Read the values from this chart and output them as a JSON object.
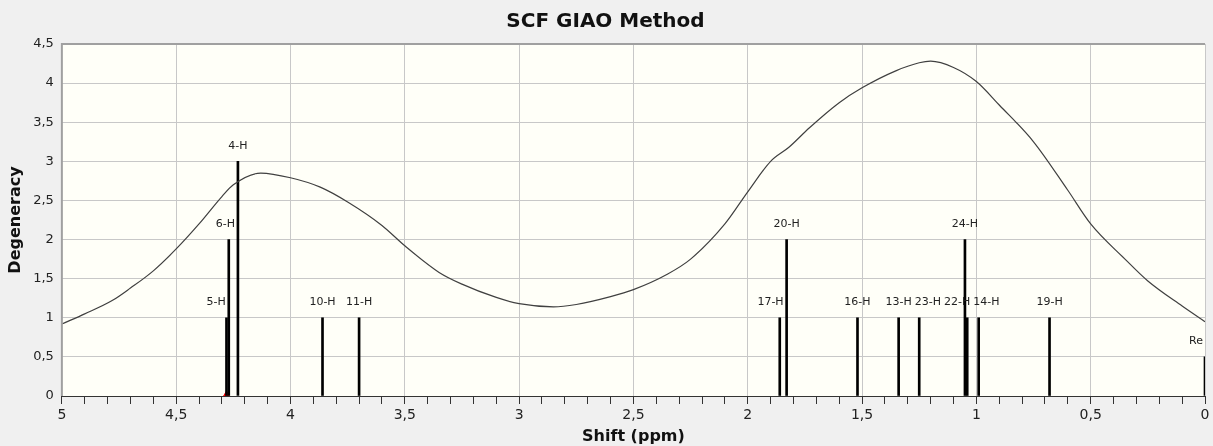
{
  "chart_data": {
    "type": "bar",
    "title": "SCF GIAO Method",
    "xlabel": "Shift (ppm)",
    "ylabel": "Degeneracy",
    "xlim": [
      5,
      0
    ],
    "xticks": [
      {
        "value": 5,
        "label": "5"
      },
      {
        "value": 4.9,
        "label": null
      },
      {
        "value": 4.8,
        "label": null
      },
      {
        "value": 4.7,
        "label": null
      },
      {
        "value": 4.6,
        "label": null
      },
      {
        "value": 4.5,
        "label": "4,5"
      },
      {
        "value": 4.4,
        "label": null
      },
      {
        "value": 4.3,
        "label": null
      },
      {
        "value": 4.2,
        "label": null
      },
      {
        "value": 4.1,
        "label": null
      },
      {
        "value": 4,
        "label": "4"
      },
      {
        "value": 3.9,
        "label": null
      },
      {
        "value": 3.8,
        "label": null
      },
      {
        "value": 3.7,
        "label": null
      },
      {
        "value": 3.6,
        "label": null
      },
      {
        "value": 3.5,
        "label": "3,5"
      },
      {
        "value": 3.4,
        "label": null
      },
      {
        "value": 3.3,
        "label": null
      },
      {
        "value": 3.2,
        "label": null
      },
      {
        "value": 3.1,
        "label": null
      },
      {
        "value": 3,
        "label": "3"
      },
      {
        "value": 2.9,
        "label": null
      },
      {
        "value": 2.8,
        "label": null
      },
      {
        "value": 2.7,
        "label": null
      },
      {
        "value": 2.6,
        "label": null
      },
      {
        "value": 2.5,
        "label": "2,5"
      },
      {
        "value": 2.4,
        "label": null
      },
      {
        "value": 2.3,
        "label": null
      },
      {
        "value": 2.2,
        "label": null
      },
      {
        "value": 2.1,
        "label": null
      },
      {
        "value": 2,
        "label": "2"
      },
      {
        "value": 1.9,
        "label": null
      },
      {
        "value": 1.8,
        "label": null
      },
      {
        "value": 1.7,
        "label": null
      },
      {
        "value": 1.6,
        "label": null
      },
      {
        "value": 1.5,
        "label": "1,5"
      },
      {
        "value": 1.4,
        "label": null
      },
      {
        "value": 1.3,
        "label": null
      },
      {
        "value": 1.2,
        "label": null
      },
      {
        "value": 1.1,
        "label": null
      },
      {
        "value": 1,
        "label": "1"
      },
      {
        "value": 0.9,
        "label": null
      },
      {
        "value": 0.8,
        "label": null
      },
      {
        "value": 0.7,
        "label": null
      },
      {
        "value": 0.6,
        "label": null
      },
      {
        "value": 0.5,
        "label": "0,5"
      },
      {
        "value": 0.4,
        "label": null
      },
      {
        "value": 0.3,
        "label": null
      },
      {
        "value": 0.2,
        "label": null
      },
      {
        "value": 0.1,
        "label": null
      },
      {
        "value": 0,
        "label": "0"
      }
    ],
    "ylim": [
      0,
      4.5
    ],
    "yticks": [
      0,
      {
        "value": 0.5,
        "label": "0,5"
      },
      1,
      {
        "value": 1.5,
        "label": "1,5"
      },
      2,
      {
        "value": 2.5,
        "label": "2,5"
      },
      3,
      {
        "value": 3.5,
        "label": "3,5"
      },
      4,
      {
        "value": 4.5,
        "label": "4,5"
      }
    ],
    "grid": true,
    "legend": false,
    "series": [
      {
        "type": "line",
        "color": "#404040",
        "marker": "none",
        "x": [
          5,
          4.9,
          4.78,
          4.7,
          4.6,
          4.5,
          4.4,
          4.3,
          4.25,
          4.13,
          4,
          3.87,
          3.75,
          3.6,
          3.5,
          3.35,
          3.25,
          3.1,
          3,
          2.85,
          2.75,
          2.6,
          2.5,
          2.35,
          2.25,
          2.1,
          2,
          1.9,
          1.82,
          1.73,
          1.6,
          1.5,
          1.35,
          1.25,
          1.2,
          1.1,
          1,
          0.9,
          0.75,
          0.6,
          0.5,
          0.35,
          0.25,
          0.1,
          0
        ],
        "values": [
          0.92,
          1.05,
          1.22,
          1.38,
          1.6,
          1.88,
          2.2,
          2.55,
          2.7,
          2.85,
          2.79,
          2.67,
          2.48,
          2.18,
          1.92,
          1.58,
          1.43,
          1.26,
          1.18,
          1.14,
          1.17,
          1.27,
          1.36,
          1.56,
          1.75,
          2.2,
          2.61,
          3.0,
          3.18,
          3.43,
          3.75,
          3.94,
          4.16,
          4.26,
          4.28,
          4.2,
          4.02,
          3.72,
          3.25,
          2.63,
          2.2,
          1.75,
          1.47,
          1.15,
          0.95
        ]
      },
      {
        "color": "#000000",
        "x": [
          4.28,
          4.27,
          4.23,
          3.86,
          3.7,
          1.86,
          1.83,
          1.52,
          1.34,
          1.25,
          1.05,
          1.04,
          0.99,
          0.68,
          0
        ],
        "values": [
          1,
          2,
          3,
          1,
          1,
          1,
          2,
          1,
          1,
          1,
          2,
          1,
          1,
          1,
          0.5
        ]
      },
      {
        "type": "scatter",
        "color": "#ff0000",
        "marker": "triangle",
        "x": [
          4.28
        ],
        "values": [
          0
        ]
      }
    ],
    "annotations": [
      {
        "text": "5-H",
        "x": 4.28,
        "y": 1
      },
      {
        "text": "6-H",
        "x": 4.27,
        "y": 2
      },
      {
        "text": "4-H",
        "x": 4.23,
        "y": 3
      },
      {
        "text": "10-H",
        "x": 3.86,
        "y": 1
      },
      {
        "text": "11-H",
        "x": 3.7,
        "y": 1
      },
      {
        "text": "17-H",
        "x": 1.86,
        "y": 1
      },
      {
        "text": "20-H",
        "x": 1.83,
        "y": 2
      },
      {
        "text": "16-H",
        "x": 1.52,
        "y": 1
      },
      {
        "text": "13-H",
        "x": 1.34,
        "y": 1
      },
      {
        "text": "23-H",
        "x": 1.25,
        "y": 1
      },
      {
        "text": "24-H",
        "x": 1.05,
        "y": 2
      },
      {
        "text": "22-H",
        "x": 1.04,
        "y": 1
      },
      {
        "text": "14-H",
        "x": 0.99,
        "y": 1
      },
      {
        "text": "19-H",
        "x": 0.68,
        "y": 1
      },
      {
        "text": "Re",
        "x": 0,
        "y": 0.5
      }
    ]
  }
}
